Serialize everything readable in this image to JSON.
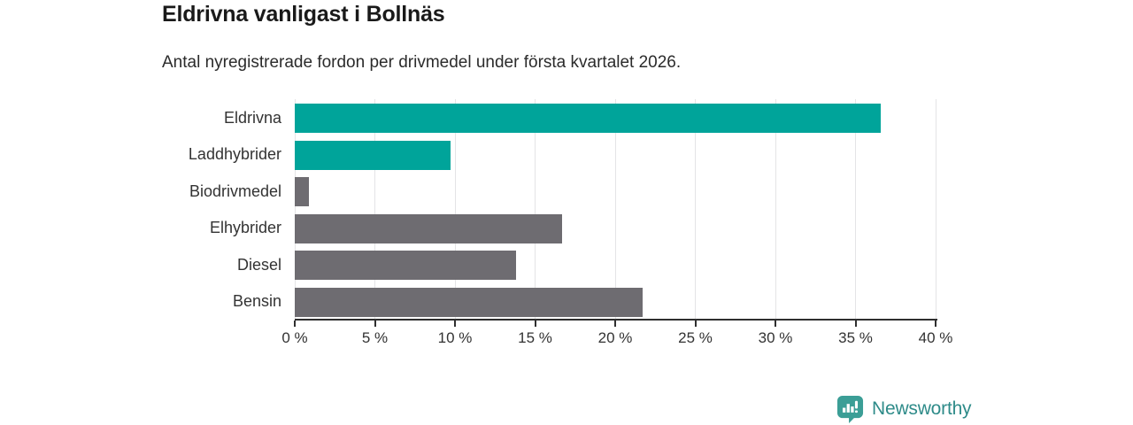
{
  "header": {
    "title": "Eldrivna vanligast i Bollnäs",
    "subtitle": "Antal nyregistrerade fordon per drivmedel under första kvartalet 2026."
  },
  "chart_data": {
    "type": "bar",
    "orientation": "horizontal",
    "title": "Eldrivna vanligast i Bollnäs",
    "subtitle": "Antal nyregistrerade fordon per drivmedel under första kvartalet 2026.",
    "categories": [
      "Eldrivna",
      "Laddhybrider",
      "Biodrivmedel",
      "Elhybrider",
      "Diesel",
      "Bensin"
    ],
    "values": [
      36.6,
      9.7,
      0.9,
      16.7,
      13.8,
      21.7
    ],
    "unit": "%",
    "bar_colors": [
      "#00a49a",
      "#00a49a",
      "#6e6c71",
      "#6e6c71",
      "#6e6c71",
      "#6e6c71"
    ],
    "highlight_color": "#00a49a",
    "base_color": "#6e6c71",
    "xlabel": "",
    "ylabel": "",
    "xlim": [
      0,
      40
    ],
    "xticks": [
      0,
      5,
      10,
      15,
      20,
      25,
      30,
      35,
      40
    ],
    "xtick_labels": [
      "0 %",
      "5 %",
      "10 %",
      "15 %",
      "20 %",
      "25 %",
      "30 %",
      "35 %",
      "40 %"
    ],
    "grid": "vertical",
    "legend": "none"
  },
  "footer": {
    "brand": "Newsworthy",
    "brand_color": "#2e8b89",
    "logo_icon": "bar-chart-speech-bubble-icon",
    "logo_color": "#3b9e96"
  }
}
